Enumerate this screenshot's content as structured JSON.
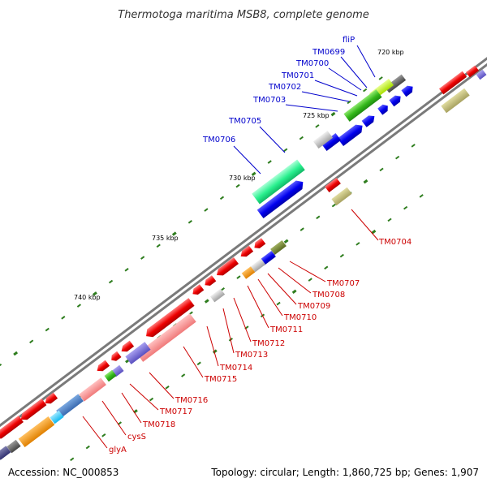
{
  "title": "Thermotoga maritima MSB8, complete genome",
  "accession": "Accession: NC_000853",
  "summary": "Topology: circular; Length: 1,860,725 bp; Genes: 1,907",
  "colors": {
    "label_upper": "#0000cc",
    "label_lower": "#cc0000",
    "backbone": "#7a7a7a",
    "tick": "#2e7d1e"
  },
  "kbp_marks": [
    "720 kbp",
    "725 kbp",
    "730 kbp",
    "735 kbp",
    "740 kbp"
  ],
  "upper_labels": [
    "fliP",
    "TM0699",
    "TM0700",
    "TM0701",
    "TM0702",
    "TM0703",
    "TM0705",
    "TM0706"
  ],
  "lower_labels": [
    "TM0704",
    "TM0707",
    "TM0708",
    "TM0709",
    "TM0710",
    "TM0711",
    "TM0712",
    "TM0713",
    "TM0714",
    "TM0715",
    "TM0716",
    "TM0717",
    "TM0718",
    "cysS",
    "glyA"
  ]
}
